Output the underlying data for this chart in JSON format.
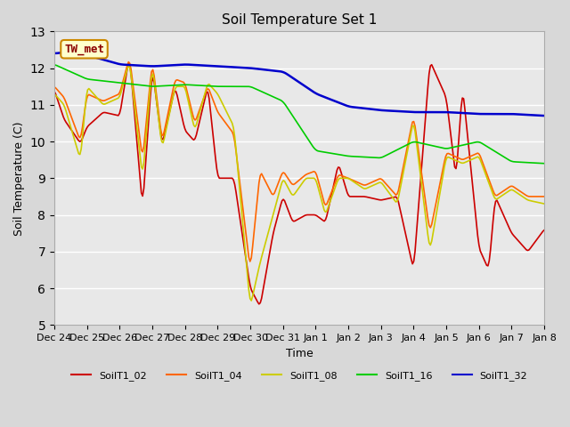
{
  "title": "Soil Temperature Set 1",
  "xlabel": "Time",
  "ylabel": "Soil Temperature (C)",
  "ylim": [
    5.0,
    13.0
  ],
  "yticks": [
    5.0,
    6.0,
    7.0,
    8.0,
    9.0,
    10.0,
    11.0,
    12.0,
    13.0
  ],
  "xtick_labels": [
    "Dec 24",
    "Dec 25",
    "Dec 26",
    "Dec 27",
    "Dec 28",
    "Dec 29",
    "Dec 30",
    "Dec 31",
    "Jan 1",
    "Jan 2",
    "Jan 3",
    "Jan 4",
    "Jan 5",
    "Jan 6",
    "Jan 7",
    "Jan 8"
  ],
  "series_colors": {
    "SoilT1_02": "#cc0000",
    "SoilT1_04": "#ff6600",
    "SoilT1_08": "#cccc00",
    "SoilT1_16": "#00cc00",
    "SoilT1_32": "#0000cc"
  },
  "legend_label": "TW_met",
  "legend_box_color": "#ffffcc",
  "legend_box_border": "#cc8800",
  "background_color": "#e8e8e8",
  "plot_background": "#e8e8e8",
  "grid_color": "#ffffff",
  "annotation": "TW_met"
}
